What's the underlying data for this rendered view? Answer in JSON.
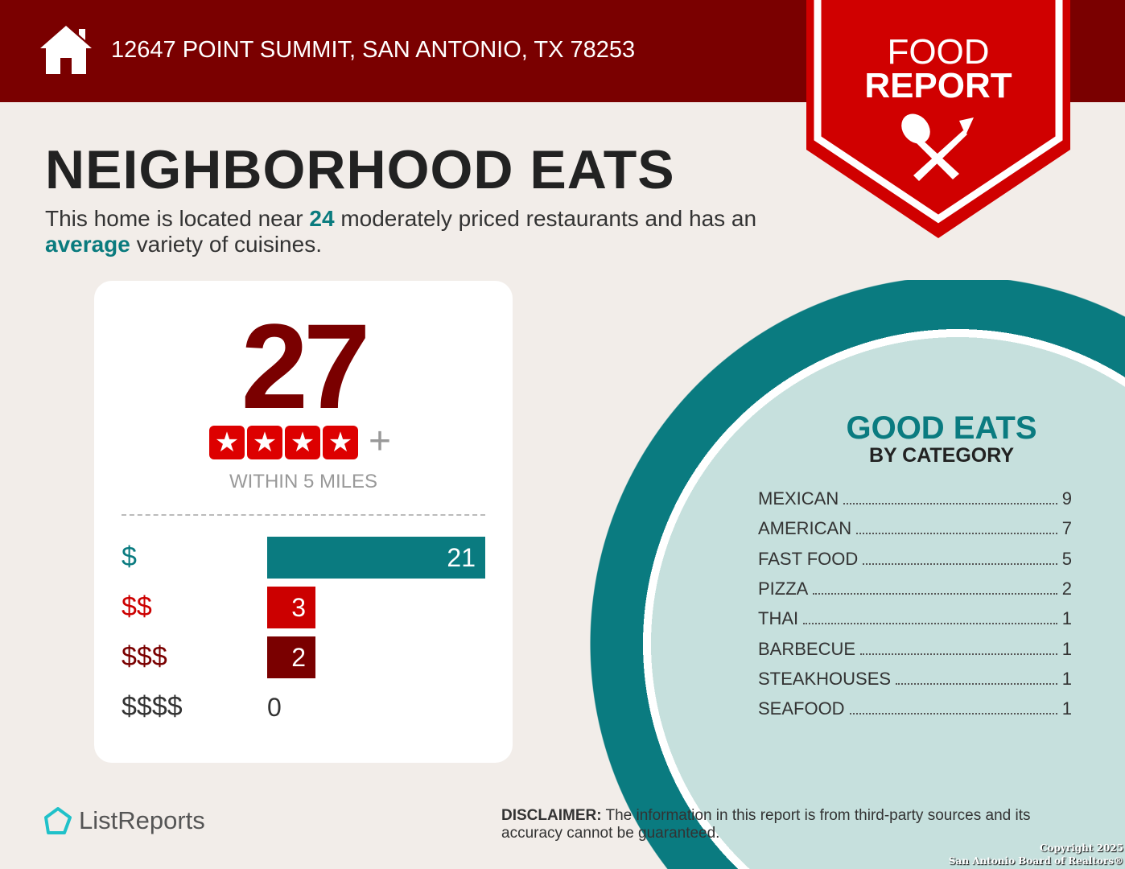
{
  "header": {
    "address": "12647 POINT SUMMIT, SAN ANTONIO, TX 78253",
    "icon": "home-icon"
  },
  "badge": {
    "line1": "FOOD",
    "line2": "REPORT",
    "icon": "spoon-fork-icon"
  },
  "title": "NEIGHBORHOOD EATS",
  "summary": {
    "pre": "This home is located near ",
    "count": "24",
    "mid": " moderately priced restaurants and has an ",
    "variety": "average",
    "post": " variety of cuisines."
  },
  "card": {
    "total": "27",
    "stars": 4,
    "plus": "+",
    "within": "WITHIN 5 MILES",
    "prices": [
      {
        "label": "$",
        "value": "21",
        "color": "#0a7b80"
      },
      {
        "label": "$$",
        "value": "3",
        "color": "#cc0000"
      },
      {
        "label": "$$$",
        "value": "2",
        "color": "#7a0000"
      },
      {
        "label": "$$$$",
        "value": "0",
        "color": "#333333"
      }
    ]
  },
  "categories": {
    "title": "GOOD EATS",
    "subtitle": "BY CATEGORY",
    "items": [
      {
        "name": "MEXICAN",
        "count": "9"
      },
      {
        "name": "AMERICAN",
        "count": "7"
      },
      {
        "name": "FAST FOOD",
        "count": "5"
      },
      {
        "name": "PIZZA",
        "count": "2"
      },
      {
        "name": "THAI",
        "count": "1"
      },
      {
        "name": "BARBECUE",
        "count": "1"
      },
      {
        "name": "STEAKHOUSES",
        "count": "1"
      },
      {
        "name": "SEAFOOD",
        "count": "1"
      }
    ]
  },
  "footer": {
    "logo": "ListReports",
    "disclaimer_label": "DISCLAIMER:",
    "disclaimer": " The information in this report is from third-party sources and its accuracy cannot be guaranteed.",
    "copyright1": "Copyright 2025",
    "copyright2": "San Antonio Board of Realtors®"
  }
}
